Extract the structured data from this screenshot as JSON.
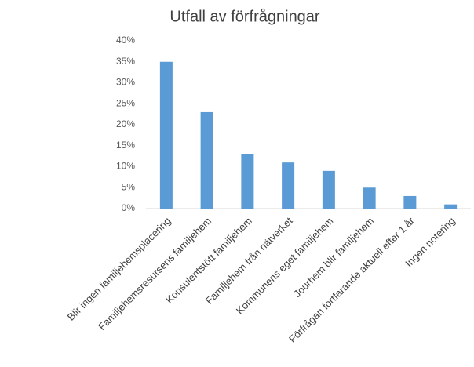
{
  "chart_data": {
    "type": "bar",
    "title": "Utfall av förfrågningar",
    "categories": [
      "Blir ingen familjehemsplacering",
      "Familjehemsresursens familjehem",
      "Konsulentstött familjehem",
      "Familjehem från nätverket",
      "Kommunens eget familjehem",
      "Jourhem blir familjehem",
      "Förfrågan fortfarande aktuell efter 1 år",
      "Ingen notering"
    ],
    "values": [
      35,
      23,
      13,
      11,
      9,
      5,
      3,
      1
    ],
    "color": "#5b9bd5",
    "ylim": [
      0,
      40
    ],
    "yticks": [
      {
        "value": 0,
        "label": "0%"
      },
      {
        "value": 5,
        "label": "5%"
      },
      {
        "value": 10,
        "label": "10%"
      },
      {
        "value": 15,
        "label": "15%"
      },
      {
        "value": 20,
        "label": "20%"
      },
      {
        "value": 25,
        "label": "25%"
      },
      {
        "value": 30,
        "label": "30%"
      },
      {
        "value": 35,
        "label": "35%"
      },
      {
        "value": 40,
        "label": "40%"
      }
    ],
    "grid": false
  }
}
